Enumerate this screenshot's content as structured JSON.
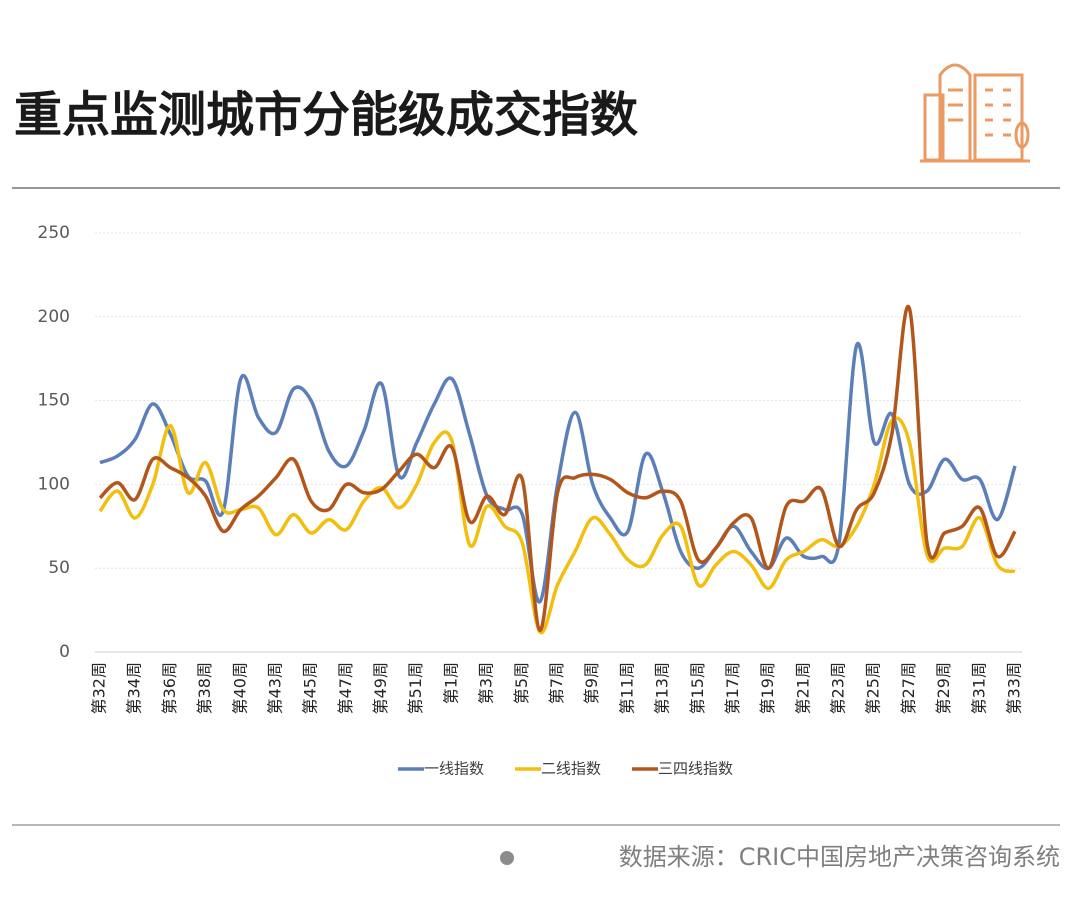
{
  "chart_data": {
    "type": "line",
    "title": "重点监测城市分能级成交指数",
    "source": "数据来源：CRIC中国房地产决策咨询系统",
    "categories": [
      "第32周",
      null,
      "第34周",
      null,
      "第36周",
      null,
      "第38周",
      null,
      "第40周",
      null,
      "第43周",
      null,
      "第45周",
      null,
      "第47周",
      null,
      "第49周",
      null,
      "第51周",
      null,
      "第1周",
      null,
      "第3周",
      null,
      "第5周",
      null,
      "第7周",
      null,
      "第9周",
      null,
      "第11周",
      null,
      "第13周",
      null,
      "第15周",
      null,
      "第17周",
      null,
      "第19周",
      null,
      "第21周",
      null,
      "第23周",
      null,
      "第25周",
      null,
      "第27周",
      null,
      "第29周",
      null,
      "第31周",
      null,
      "第33周"
    ],
    "series": [
      {
        "name": "一线指数",
        "color": "#5b7fb8",
        "values": [
          113,
          117,
          127,
          148,
          130,
          105,
          102,
          84,
          163,
          140,
          131,
          157,
          150,
          120,
          111,
          132,
          160,
          105,
          125,
          148,
          163,
          130,
          93,
          85,
          82,
          30,
          100,
          143,
          100,
          80,
          72,
          118,
          95,
          60,
          50,
          62,
          75,
          60,
          50,
          68,
          57,
          57,
          65,
          183,
          125,
          142,
          100,
          96,
          115,
          103,
          103,
          79,
          111
        ]
      },
      {
        "name": "二线指数",
        "color": "#f2be0f",
        "values": [
          84,
          96,
          80,
          100,
          135,
          95,
          113,
          85,
          85,
          86,
          70,
          82,
          71,
          79,
          73,
          90,
          98,
          86,
          100,
          125,
          126,
          64,
          87,
          75,
          65,
          12,
          40,
          60,
          80,
          70,
          55,
          52,
          70,
          75,
          40,
          52,
          60,
          52,
          38,
          55,
          60,
          67,
          63,
          75,
          100,
          138,
          125,
          58,
          62,
          63,
          80,
          52,
          48
        ]
      },
      {
        "name": "三四线指数",
        "color": "#b3561c",
        "values": [
          92,
          101,
          91,
          115,
          110,
          104,
          93,
          72,
          85,
          93,
          104,
          115,
          90,
          85,
          100,
          95,
          97,
          108,
          118,
          110,
          122,
          78,
          93,
          82,
          103,
          13,
          95,
          104,
          106,
          103,
          95,
          92,
          96,
          90,
          55,
          62,
          77,
          80,
          50,
          87,
          90,
          97,
          63,
          85,
          95,
          130,
          205,
          65,
          71,
          75,
          86,
          57,
          72
        ]
      }
    ],
    "ylim": [
      0,
      250
    ],
    "yticks": [
      0,
      50,
      100,
      150,
      200,
      250
    ],
    "grid": true
  }
}
